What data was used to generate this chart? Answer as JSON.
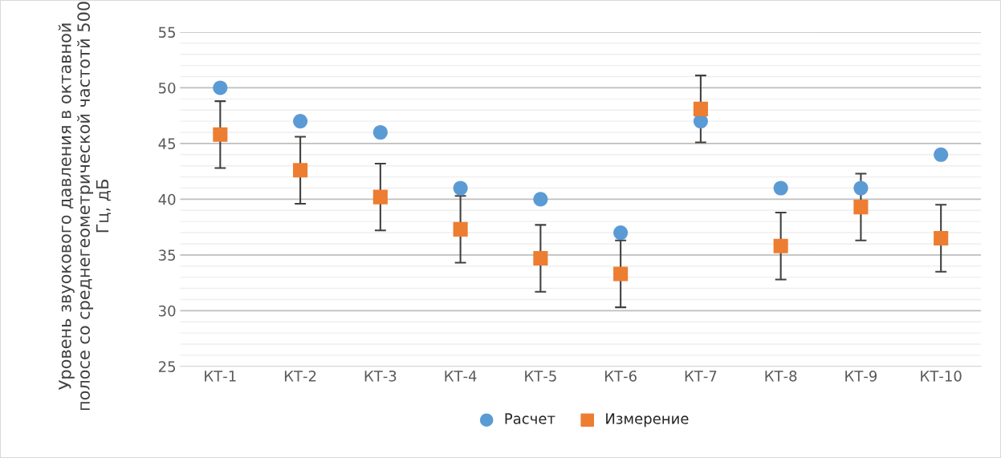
{
  "chart_data": {
    "type": "scatter",
    "ylabel": "Уровень звуокового давления в октавной полосе со среднегеометрической частотй 500 Гц, дБ",
    "categories": [
      "КТ-1",
      "КТ-2",
      "КТ-3",
      "КТ-4",
      "КТ-5",
      "КТ-6",
      "КТ-7",
      "КТ-8",
      "КТ-9",
      "КТ-10"
    ],
    "series": [
      {
        "name": "Расчет",
        "color": "#5b9bd5",
        "marker": "circle",
        "values": [
          50,
          47,
          46,
          41,
          40,
          37,
          47,
          41,
          41,
          44
        ]
      },
      {
        "name": "Измерение",
        "color": "#ed7d31",
        "marker": "square",
        "values": [
          45.8,
          42.6,
          40.2,
          37.3,
          34.7,
          33.3,
          48.1,
          35.8,
          39.3,
          36.5
        ],
        "errors": [
          3,
          3,
          3,
          3,
          3,
          3,
          3,
          3,
          3,
          3
        ]
      }
    ],
    "ylim": [
      25,
      55
    ],
    "yticks": [
      25,
      30,
      35,
      40,
      45,
      50,
      55
    ],
    "grid": "y",
    "legend": "bottom"
  }
}
